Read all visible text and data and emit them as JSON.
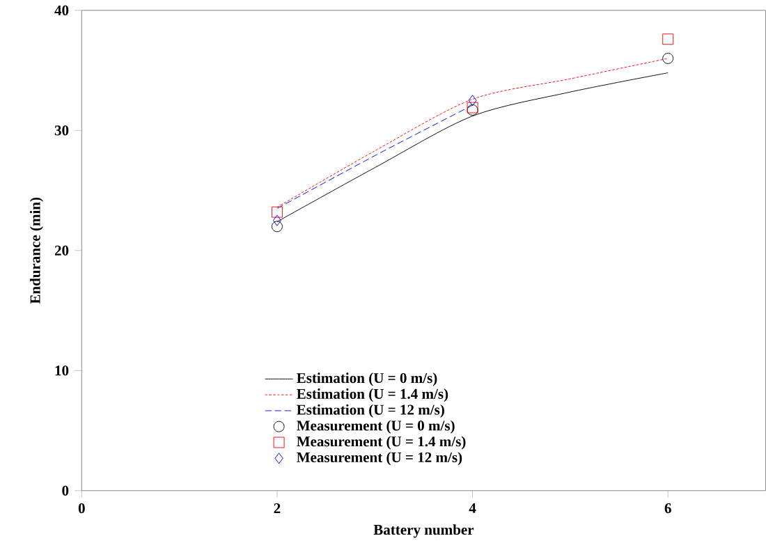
{
  "chart_data": {
    "type": "line",
    "xlabel": "Battery number",
    "ylabel": "Endurance (min)",
    "xlim": [
      0,
      7
    ],
    "ylim": [
      0,
      40
    ],
    "xticks": [
      0,
      2,
      4,
      6
    ],
    "yticks": [
      0,
      10,
      20,
      30,
      40
    ],
    "grid": false,
    "legend": "bottom",
    "series": [
      {
        "name": "Estimation (U = 0 m/s)",
        "line_style": "solid",
        "marker": "none",
        "color": "#000000",
        "x": [
          2,
          3,
          4,
          5,
          6
        ],
        "values": [
          22.4,
          26.9,
          31.2,
          33.2,
          34.8
        ]
      },
      {
        "name": "Estimation (U = 1.4 m/s)",
        "line_style": "dotted",
        "marker": "none",
        "color": "#ff0000",
        "x": [
          2,
          3,
          4,
          5,
          6
        ],
        "values": [
          23.6,
          28.3,
          32.6,
          34.3,
          36.0
        ]
      },
      {
        "name": "Estimation (U = 12 m/s)",
        "line_style": "dashed",
        "marker": "none",
        "color": "#0000ff",
        "x": [
          2,
          3,
          4
        ],
        "values": [
          23.5,
          27.9,
          32.1
        ]
      },
      {
        "name": "Measurement (U = 0 m/s)",
        "type": "scatter",
        "marker": "circle",
        "color": "#000000",
        "x": [
          2,
          4,
          6
        ],
        "values": [
          22.0,
          31.7,
          36.0
        ]
      },
      {
        "name": "Measurement (U = 1.4 m/s)",
        "type": "scatter",
        "marker": "square",
        "color": "#ff0000",
        "x": [
          2,
          4,
          6
        ],
        "values": [
          23.2,
          31.9,
          37.6
        ]
      },
      {
        "name": "Measurement (U = 12 m/s)",
        "type": "scatter",
        "marker": "diamond",
        "color": "#0000ff",
        "x": [
          2,
          4
        ],
        "values": [
          22.5,
          32.5
        ]
      }
    ]
  }
}
